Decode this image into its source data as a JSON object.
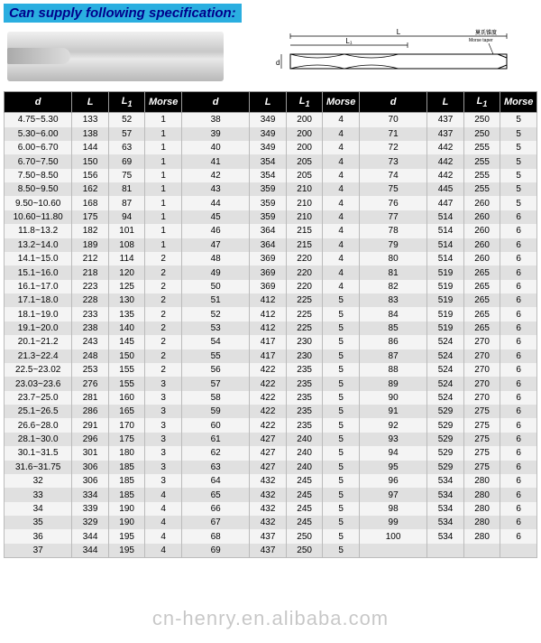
{
  "title": "Can supply following specification:",
  "title_bg": "#2aaee0",
  "title_color": "#00008b",
  "watermark": "cn-henry.en.alibaba.com",
  "diagram_labels": {
    "L": "L",
    "L1": "L₁",
    "d": "d",
    "taper": "莫氏锥度\nMorse taper"
  },
  "columns": [
    "d",
    "L",
    "L1",
    "Morse"
  ],
  "header_bg": "#000000",
  "header_color": "#ffffff",
  "row_bg_odd": "#f4f4f4",
  "row_bg_even": "#e0e0e0",
  "groups": [
    [
      [
        "4.75~5.30",
        "133",
        "52",
        "1"
      ],
      [
        "5.30~6.00",
        "138",
        "57",
        "1"
      ],
      [
        "6.00~6.70",
        "144",
        "63",
        "1"
      ],
      [
        "6.70~7.50",
        "150",
        "69",
        "1"
      ],
      [
        "7.50~8.50",
        "156",
        "75",
        "1"
      ],
      [
        "8.50~9.50",
        "162",
        "81",
        "1"
      ],
      [
        "9.50~10.60",
        "168",
        "87",
        "1"
      ],
      [
        "10.60~11.80",
        "175",
        "94",
        "1"
      ],
      [
        "11.8~13.2",
        "182",
        "101",
        "1"
      ],
      [
        "13.2~14.0",
        "189",
        "108",
        "1"
      ],
      [
        "14.1~15.0",
        "212",
        "114",
        "2"
      ],
      [
        "15.1~16.0",
        "218",
        "120",
        "2"
      ],
      [
        "16.1~17.0",
        "223",
        "125",
        "2"
      ],
      [
        "17.1~18.0",
        "228",
        "130",
        "2"
      ],
      [
        "18.1~19.0",
        "233",
        "135",
        "2"
      ],
      [
        "19.1~20.0",
        "238",
        "140",
        "2"
      ],
      [
        "20.1~21.2",
        "243",
        "145",
        "2"
      ],
      [
        "21.3~22.4",
        "248",
        "150",
        "2"
      ],
      [
        "22.5~23.02",
        "253",
        "155",
        "2"
      ],
      [
        "23.03~23.6",
        "276",
        "155",
        "3"
      ],
      [
        "23.7~25.0",
        "281",
        "160",
        "3"
      ],
      [
        "25.1~26.5",
        "286",
        "165",
        "3"
      ],
      [
        "26.6~28.0",
        "291",
        "170",
        "3"
      ],
      [
        "28.1~30.0",
        "296",
        "175",
        "3"
      ],
      [
        "30.1~31.5",
        "301",
        "180",
        "3"
      ],
      [
        "31.6~31.75",
        "306",
        "185",
        "3"
      ],
      [
        "32",
        "306",
        "185",
        "3"
      ],
      [
        "33",
        "334",
        "185",
        "4"
      ],
      [
        "34",
        "339",
        "190",
        "4"
      ],
      [
        "35",
        "329",
        "190",
        "4"
      ],
      [
        "36",
        "344",
        "195",
        "4"
      ],
      [
        "37",
        "344",
        "195",
        "4"
      ]
    ],
    [
      [
        "38",
        "349",
        "200",
        "4"
      ],
      [
        "39",
        "349",
        "200",
        "4"
      ],
      [
        "40",
        "349",
        "200",
        "4"
      ],
      [
        "41",
        "354",
        "205",
        "4"
      ],
      [
        "42",
        "354",
        "205",
        "4"
      ],
      [
        "43",
        "359",
        "210",
        "4"
      ],
      [
        "44",
        "359",
        "210",
        "4"
      ],
      [
        "45",
        "359",
        "210",
        "4"
      ],
      [
        "46",
        "364",
        "215",
        "4"
      ],
      [
        "47",
        "364",
        "215",
        "4"
      ],
      [
        "48",
        "369",
        "220",
        "4"
      ],
      [
        "49",
        "369",
        "220",
        "4"
      ],
      [
        "50",
        "369",
        "220",
        "4"
      ],
      [
        "51",
        "412",
        "225",
        "5"
      ],
      [
        "52",
        "412",
        "225",
        "5"
      ],
      [
        "53",
        "412",
        "225",
        "5"
      ],
      [
        "54",
        "417",
        "230",
        "5"
      ],
      [
        "55",
        "417",
        "230",
        "5"
      ],
      [
        "56",
        "422",
        "235",
        "5"
      ],
      [
        "57",
        "422",
        "235",
        "5"
      ],
      [
        "58",
        "422",
        "235",
        "5"
      ],
      [
        "59",
        "422",
        "235",
        "5"
      ],
      [
        "60",
        "422",
        "235",
        "5"
      ],
      [
        "61",
        "427",
        "240",
        "5"
      ],
      [
        "62",
        "427",
        "240",
        "5"
      ],
      [
        "63",
        "427",
        "240",
        "5"
      ],
      [
        "64",
        "432",
        "245",
        "5"
      ],
      [
        "65",
        "432",
        "245",
        "5"
      ],
      [
        "66",
        "432",
        "245",
        "5"
      ],
      [
        "67",
        "432",
        "245",
        "5"
      ],
      [
        "68",
        "437",
        "250",
        "5"
      ],
      [
        "69",
        "437",
        "250",
        "5"
      ]
    ],
    [
      [
        "70",
        "437",
        "250",
        "5"
      ],
      [
        "71",
        "437",
        "250",
        "5"
      ],
      [
        "72",
        "442",
        "255",
        "5"
      ],
      [
        "73",
        "442",
        "255",
        "5"
      ],
      [
        "74",
        "442",
        "255",
        "5"
      ],
      [
        "75",
        "445",
        "255",
        "5"
      ],
      [
        "76",
        "447",
        "260",
        "5"
      ],
      [
        "77",
        "514",
        "260",
        "6"
      ],
      [
        "78",
        "514",
        "260",
        "6"
      ],
      [
        "79",
        "514",
        "260",
        "6"
      ],
      [
        "80",
        "514",
        "260",
        "6"
      ],
      [
        "81",
        "519",
        "265",
        "6"
      ],
      [
        "82",
        "519",
        "265",
        "6"
      ],
      [
        "83",
        "519",
        "265",
        "6"
      ],
      [
        "84",
        "519",
        "265",
        "6"
      ],
      [
        "85",
        "519",
        "265",
        "6"
      ],
      [
        "86",
        "524",
        "270",
        "6"
      ],
      [
        "87",
        "524",
        "270",
        "6"
      ],
      [
        "88",
        "524",
        "270",
        "6"
      ],
      [
        "89",
        "524",
        "270",
        "6"
      ],
      [
        "90",
        "524",
        "270",
        "6"
      ],
      [
        "91",
        "529",
        "275",
        "6"
      ],
      [
        "92",
        "529",
        "275",
        "6"
      ],
      [
        "93",
        "529",
        "275",
        "6"
      ],
      [
        "94",
        "529",
        "275",
        "6"
      ],
      [
        "95",
        "529",
        "275",
        "6"
      ],
      [
        "96",
        "534",
        "280",
        "6"
      ],
      [
        "97",
        "534",
        "280",
        "6"
      ],
      [
        "98",
        "534",
        "280",
        "6"
      ],
      [
        "99",
        "534",
        "280",
        "6"
      ],
      [
        "100",
        "534",
        "280",
        "6"
      ],
      [
        "",
        "",
        "",
        ""
      ]
    ]
  ]
}
